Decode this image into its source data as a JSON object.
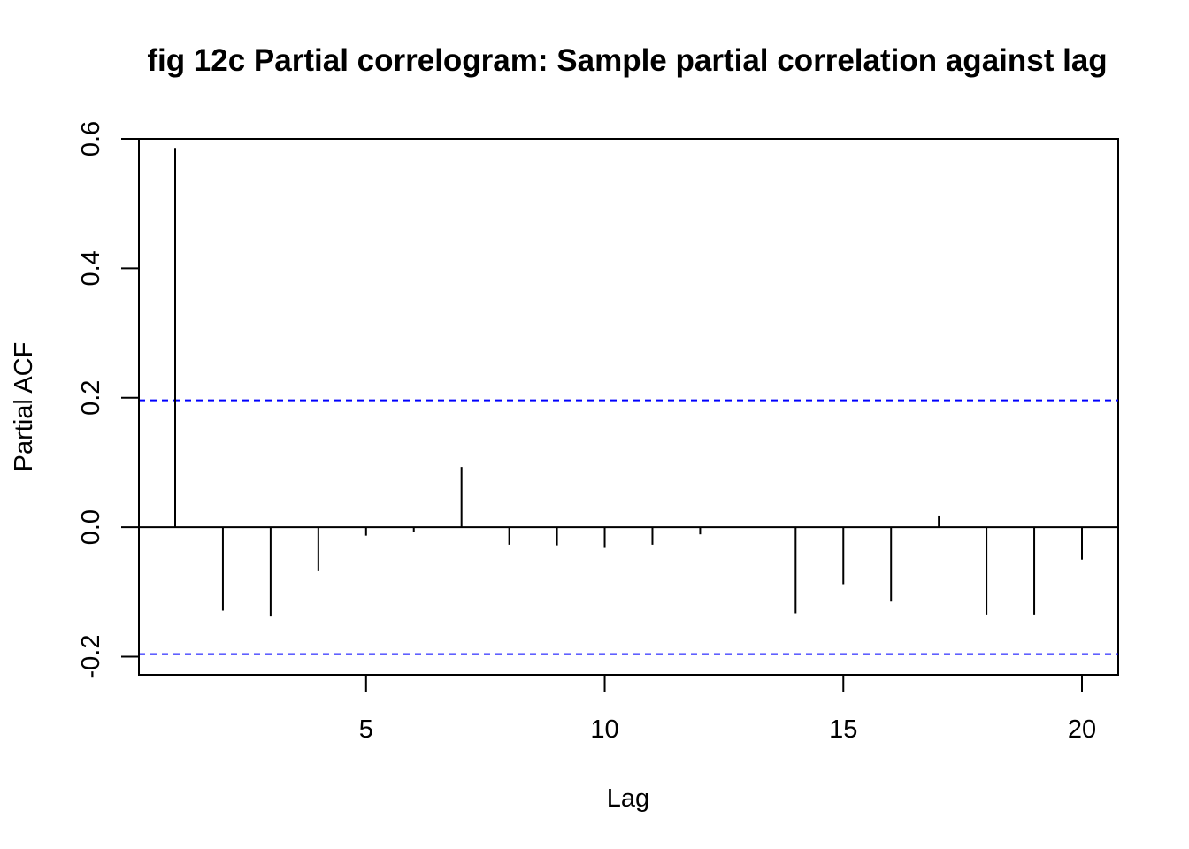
{
  "chart_data": {
    "type": "bar",
    "title": "fig 12c Partial correlogram: Sample partial correlation against lag",
    "xlabel": "Lag",
    "ylabel": "Partial ACF",
    "x": [
      1,
      2,
      3,
      4,
      5,
      6,
      7,
      8,
      9,
      10,
      11,
      12,
      13,
      14,
      15,
      16,
      17,
      18,
      19,
      20
    ],
    "values": [
      0.586,
      -0.129,
      -0.138,
      -0.068,
      -0.013,
      -0.007,
      0.093,
      -0.027,
      -0.028,
      -0.032,
      -0.027,
      -0.011,
      0.0,
      -0.133,
      -0.088,
      -0.115,
      0.018,
      -0.135,
      -0.135,
      -0.05
    ],
    "x_ticks": [
      5,
      10,
      15,
      20
    ],
    "x_tick_labels": [
      "5",
      "10",
      "15",
      "20"
    ],
    "y_ticks": [
      -0.2,
      0.0,
      0.2,
      0.4,
      0.6
    ],
    "y_tick_labels": [
      "-0.2",
      "0.0",
      "0.2",
      "0.4",
      "0.6"
    ],
    "xlim": [
      0.24,
      20.76
    ],
    "ylim": [
      -0.228,
      0.6
    ],
    "confidence_limits": [
      0.196,
      -0.196
    ],
    "confidence_color": "#0000ff",
    "bar_color": "#000000",
    "grid": false,
    "legend": "none"
  }
}
